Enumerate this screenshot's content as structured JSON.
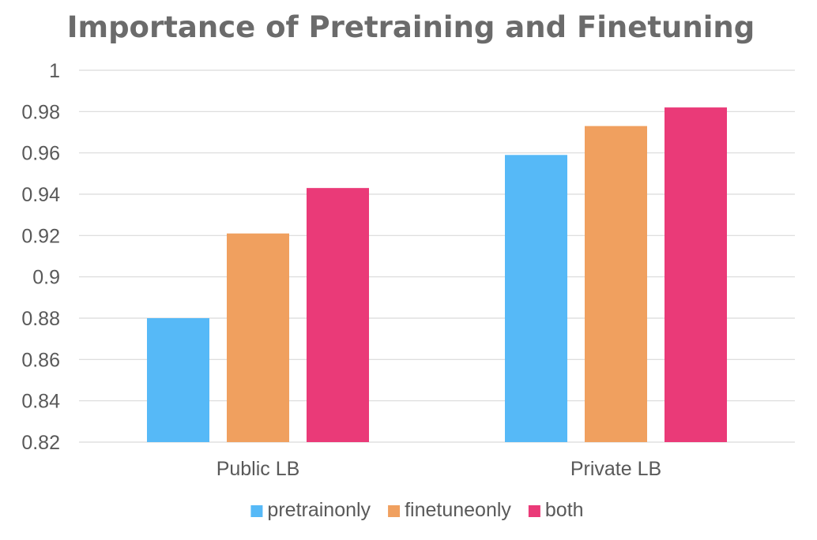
{
  "chart_data": {
    "type": "bar",
    "title": "Importance of Pretraining and Finetuning",
    "xlabel": "",
    "ylabel": "",
    "categories": [
      "Public LB",
      "Private LB"
    ],
    "series": [
      {
        "name": "pretrainonly",
        "color": "#56b9f7",
        "values": [
          0.88,
          0.959
        ]
      },
      {
        "name": "finetuneonly",
        "color": "#f0a05f",
        "values": [
          0.921,
          0.973
        ]
      },
      {
        "name": "both",
        "color": "#ea3a78",
        "values": [
          0.943,
          0.982
        ]
      }
    ],
    "ylim": [
      0.82,
      1
    ],
    "yticks": [
      0.82,
      0.84,
      0.86,
      0.88,
      0.9,
      0.92,
      0.94,
      0.96,
      0.98,
      1
    ],
    "ytick_labels": [
      "0.82",
      "0.84",
      "0.86",
      "0.88",
      "0.9",
      "0.92",
      "0.94",
      "0.96",
      "0.98",
      "1"
    ],
    "grid": true,
    "legend_position": "bottom"
  }
}
